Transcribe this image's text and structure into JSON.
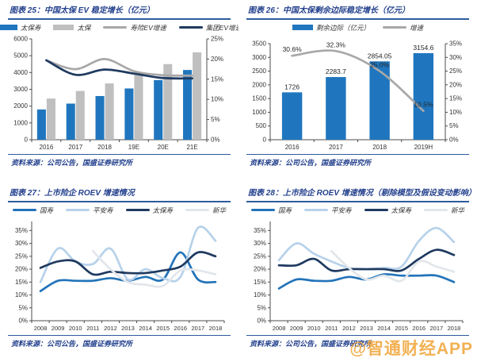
{
  "page": {
    "watermark": "@智通财经APP",
    "accent_blue": "#24418E",
    "rule_blue": "#2E5C9E"
  },
  "chart_data": [
    {
      "type": "bar",
      "subtype": "combo-bar-line",
      "title": "图表 25：中国太保 EV 稳定增长（亿元）",
      "source": "资料来源：公司公告，国盛证券研究所",
      "categories": [
        "2016",
        "2017",
        "2018",
        "19E",
        "20E",
        "21E"
      ],
      "bars": [
        {
          "name": "太保寿",
          "color": "#1F76BE",
          "values": [
            1800,
            2150,
            2600,
            3050,
            3550,
            4150
          ]
        },
        {
          "name": "太保",
          "color": "#BFBFBF",
          "values": [
            2450,
            2900,
            3350,
            3950,
            4500,
            5200
          ]
        }
      ],
      "lines": [
        {
          "name": "寿险EV增速",
          "color": "#A8A8A8",
          "values": [
            19.7,
            17.5,
            20.0,
            17.0,
            16.0,
            15.9
          ]
        },
        {
          "name": "集团EV增速",
          "color": "#1F3A60",
          "values": [
            19.7,
            16.1,
            17.4,
            16.4,
            15.3,
            15.2
          ]
        }
      ],
      "y_left": {
        "min": 0,
        "max": 6000,
        "step": 1000,
        "suffix": ""
      },
      "y_right": {
        "min": 0,
        "max": 25,
        "step": 5,
        "suffix": "%"
      },
      "legend_position": "top",
      "grid": false
    },
    {
      "type": "bar",
      "subtype": "combo-bar-line",
      "title": "图表 26：中国太保剩余边际稳定增长（亿元）",
      "source": "资料来源：公司公告，国盛证券研究所",
      "categories": [
        "2016",
        "2017",
        "2018",
        "2019H"
      ],
      "bars": [
        {
          "name": "剩余边际（亿元）",
          "color": "#1F76BE",
          "values": [
            1726,
            2283.7,
            2854.05,
            3154.6
          ],
          "labels": [
            "1726",
            "2283.7",
            "2854.05",
            "3154.6"
          ]
        }
      ],
      "lines": [
        {
          "name": "增速",
          "color": "#A8A8A8",
          "values": [
            30.6,
            32.3,
            25.0,
            10.5
          ],
          "labels": [
            "30.6%",
            "32.3%",
            "25.0%",
            "10.5%"
          ]
        }
      ],
      "y_left": {
        "min": 0,
        "max": 3500,
        "step": 500,
        "suffix": ""
      },
      "y_right": {
        "min": 0,
        "max": 35,
        "step": 5,
        "suffix": "%"
      },
      "legend_position": "top",
      "grid": false
    },
    {
      "type": "line",
      "title": "图表 27：上市险企 ROEV 增速情况",
      "source": "资料来源：公司公告，国盛证券研究所",
      "categories": [
        "2008",
        "2009",
        "2010",
        "2011",
        "2012",
        "2013",
        "2014",
        "2015",
        "2016",
        "2017",
        "2018"
      ],
      "lines": [
        {
          "name": "国寿",
          "color": "#2273B9",
          "values": [
            11.5,
            15.5,
            15.5,
            15.5,
            16.5,
            15.5,
            17,
            16,
            26.5,
            16,
            15
          ]
        },
        {
          "name": "平安寿",
          "color": "#B7D2EA",
          "values": [
            15,
            28,
            23,
            22,
            28,
            16,
            20,
            16.5,
            17,
            36,
            31
          ]
        },
        {
          "name": "太保寿",
          "color": "#1F3A60",
          "values": [
            20.5,
            23,
            23,
            18,
            19,
            18.5,
            18.5,
            19.5,
            21,
            26.5,
            25
          ]
        },
        {
          "name": "新华",
          "color": "#E2E6EB",
          "values": [
            null,
            null,
            null,
            27,
            20,
            15,
            14,
            13.5,
            19.5,
            19.5,
            18
          ]
        }
      ],
      "y_left": {
        "min": 0,
        "max": 35,
        "step": 5,
        "suffix": "%",
        "scale_max": 38.5
      },
      "legend_position": "top",
      "grid": false
    },
    {
      "type": "line",
      "title": "图表 28：上市险企 ROEV 增速情况（剔除模型及假设变动影响）",
      "source": "资料来源：公司公告，国盛证券研究所",
      "categories": [
        "2008",
        "2009",
        "2010",
        "2011",
        "2012",
        "2013",
        "2014",
        "2015",
        "2016",
        "2017",
        "2018"
      ],
      "lines": [
        {
          "name": "国寿",
          "color": "#2273B9",
          "values": [
            12.5,
            16,
            15.5,
            15.5,
            17,
            16,
            18,
            17.5,
            17.5,
            17.5,
            15
          ]
        },
        {
          "name": "平安寿",
          "color": "#B7D2EA",
          "values": [
            23.5,
            30,
            26,
            23,
            20.5,
            20,
            20.5,
            21,
            31,
            36,
            30.5
          ]
        },
        {
          "name": "太保寿",
          "color": "#1F3A60",
          "values": [
            21.5,
            21.5,
            24,
            19.5,
            20,
            20,
            20,
            19.5,
            24,
            27.5,
            25.5
          ]
        },
        {
          "name": "新华",
          "color": "#E2E6EB",
          "values": [
            null,
            null,
            null,
            27,
            20.5,
            16,
            17.5,
            15.5,
            23,
            21,
            19
          ]
        }
      ],
      "y_left": {
        "min": 0,
        "max": 35,
        "step": 5,
        "suffix": "%",
        "scale_max": 38.5
      },
      "legend_position": "top",
      "grid": false
    }
  ]
}
